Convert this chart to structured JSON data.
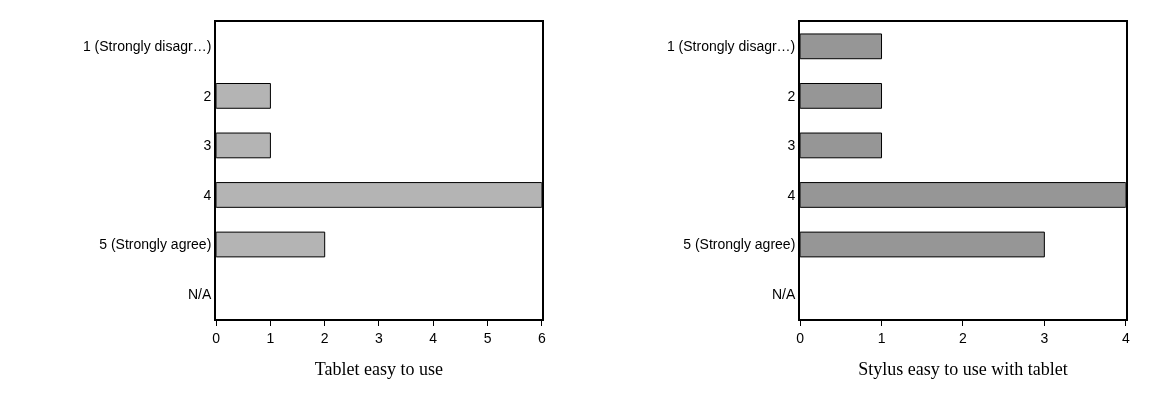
{
  "chart_data": [
    {
      "type": "bar",
      "orientation": "horizontal",
      "xlabel": "Tablet easy to use",
      "categories": [
        "1 (Strongly disagr…)",
        "2",
        "3",
        "4",
        "5 (Strongly agree)",
        "N/A"
      ],
      "values": [
        0,
        1,
        1,
        6,
        2,
        0
      ],
      "color": "#b4b4b4",
      "xlim": [
        0,
        6
      ],
      "xticks": [
        0,
        1,
        2,
        3,
        4,
        5,
        6
      ]
    },
    {
      "type": "bar",
      "orientation": "horizontal",
      "xlabel": "Stylus easy to use with tablet",
      "categories": [
        "1 (Strongly disagr…)",
        "2",
        "3",
        "4",
        "5 (Strongly agree)",
        "N/A"
      ],
      "values": [
        1,
        1,
        1,
        4,
        3,
        0
      ],
      "color": "#969696",
      "xlim": [
        0,
        4
      ],
      "xticks": [
        0,
        1,
        2,
        3,
        4
      ]
    }
  ]
}
